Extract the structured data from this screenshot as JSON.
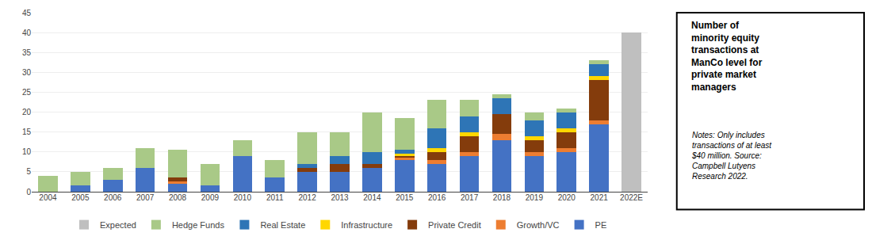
{
  "chart_data": {
    "type": "bar",
    "stacked": true,
    "categories": [
      "2004",
      "2005",
      "2006",
      "2007",
      "2008",
      "2009",
      "2010",
      "2011",
      "2012",
      "2013",
      "2014",
      "2015",
      "2016",
      "2017",
      "2018",
      "2019",
      "2020",
      "2021",
      "2022E"
    ],
    "series": [
      {
        "name": "PE",
        "color": "#4472C4",
        "values": [
          0,
          1.5,
          3,
          6,
          2,
          1.5,
          9,
          3.5,
          5,
          5,
          6,
          8,
          7,
          9,
          13,
          9,
          10,
          17,
          0
        ]
      },
      {
        "name": "Growth/VC",
        "color": "#ED7D31",
        "values": [
          0,
          0,
          0,
          0,
          0.5,
          0,
          0,
          0,
          0,
          0,
          0,
          0.5,
          1,
          1,
          1.5,
          1,
          1,
          1,
          0
        ]
      },
      {
        "name": "Private Credit",
        "color": "#843C0C",
        "values": [
          0,
          0,
          0,
          0,
          1,
          0,
          0,
          0,
          1,
          2,
          1,
          0.5,
          2,
          4,
          5,
          3,
          4,
          10,
          0
        ]
      },
      {
        "name": "Infrastructure",
        "color": "#FFD700",
        "values": [
          0,
          0,
          0,
          0,
          0,
          0,
          0,
          0,
          0,
          0,
          0,
          0.5,
          1,
          1,
          0,
          1,
          1,
          1,
          0
        ]
      },
      {
        "name": "Real Estate",
        "color": "#2E75B6",
        "values": [
          0,
          0,
          0,
          0,
          0,
          0,
          0,
          0,
          1,
          2,
          3,
          1,
          5,
          4,
          4,
          4,
          4,
          3,
          0
        ]
      },
      {
        "name": "Hedge Funds",
        "color": "#A9C987",
        "values": [
          4,
          3.5,
          3,
          5,
          7,
          5.5,
          4,
          4.5,
          8,
          6,
          10,
          8,
          7,
          4,
          1,
          2,
          1,
          1,
          0
        ]
      },
      {
        "name": "Expected",
        "color": "#BFBFBF",
        "values": [
          0,
          0,
          0,
          0,
          0,
          0,
          0,
          0,
          0,
          0,
          0,
          0,
          0,
          0,
          0,
          0,
          0,
          0,
          40
        ]
      }
    ],
    "ylim": [
      0,
      45
    ],
    "yticks": [
      0,
      5,
      10,
      15,
      20,
      25,
      30,
      35,
      40,
      45
    ],
    "grid": true,
    "legend": "bottom",
    "annotations": [
      "Number of\nminority equity\ntransactions at\nManCo level for\nprivate market\nmanagers",
      "Notes: Only includes\ntransactions of at least\n$40 million. Source:\nCampbell Lutyens\nResearch 2022."
    ]
  }
}
